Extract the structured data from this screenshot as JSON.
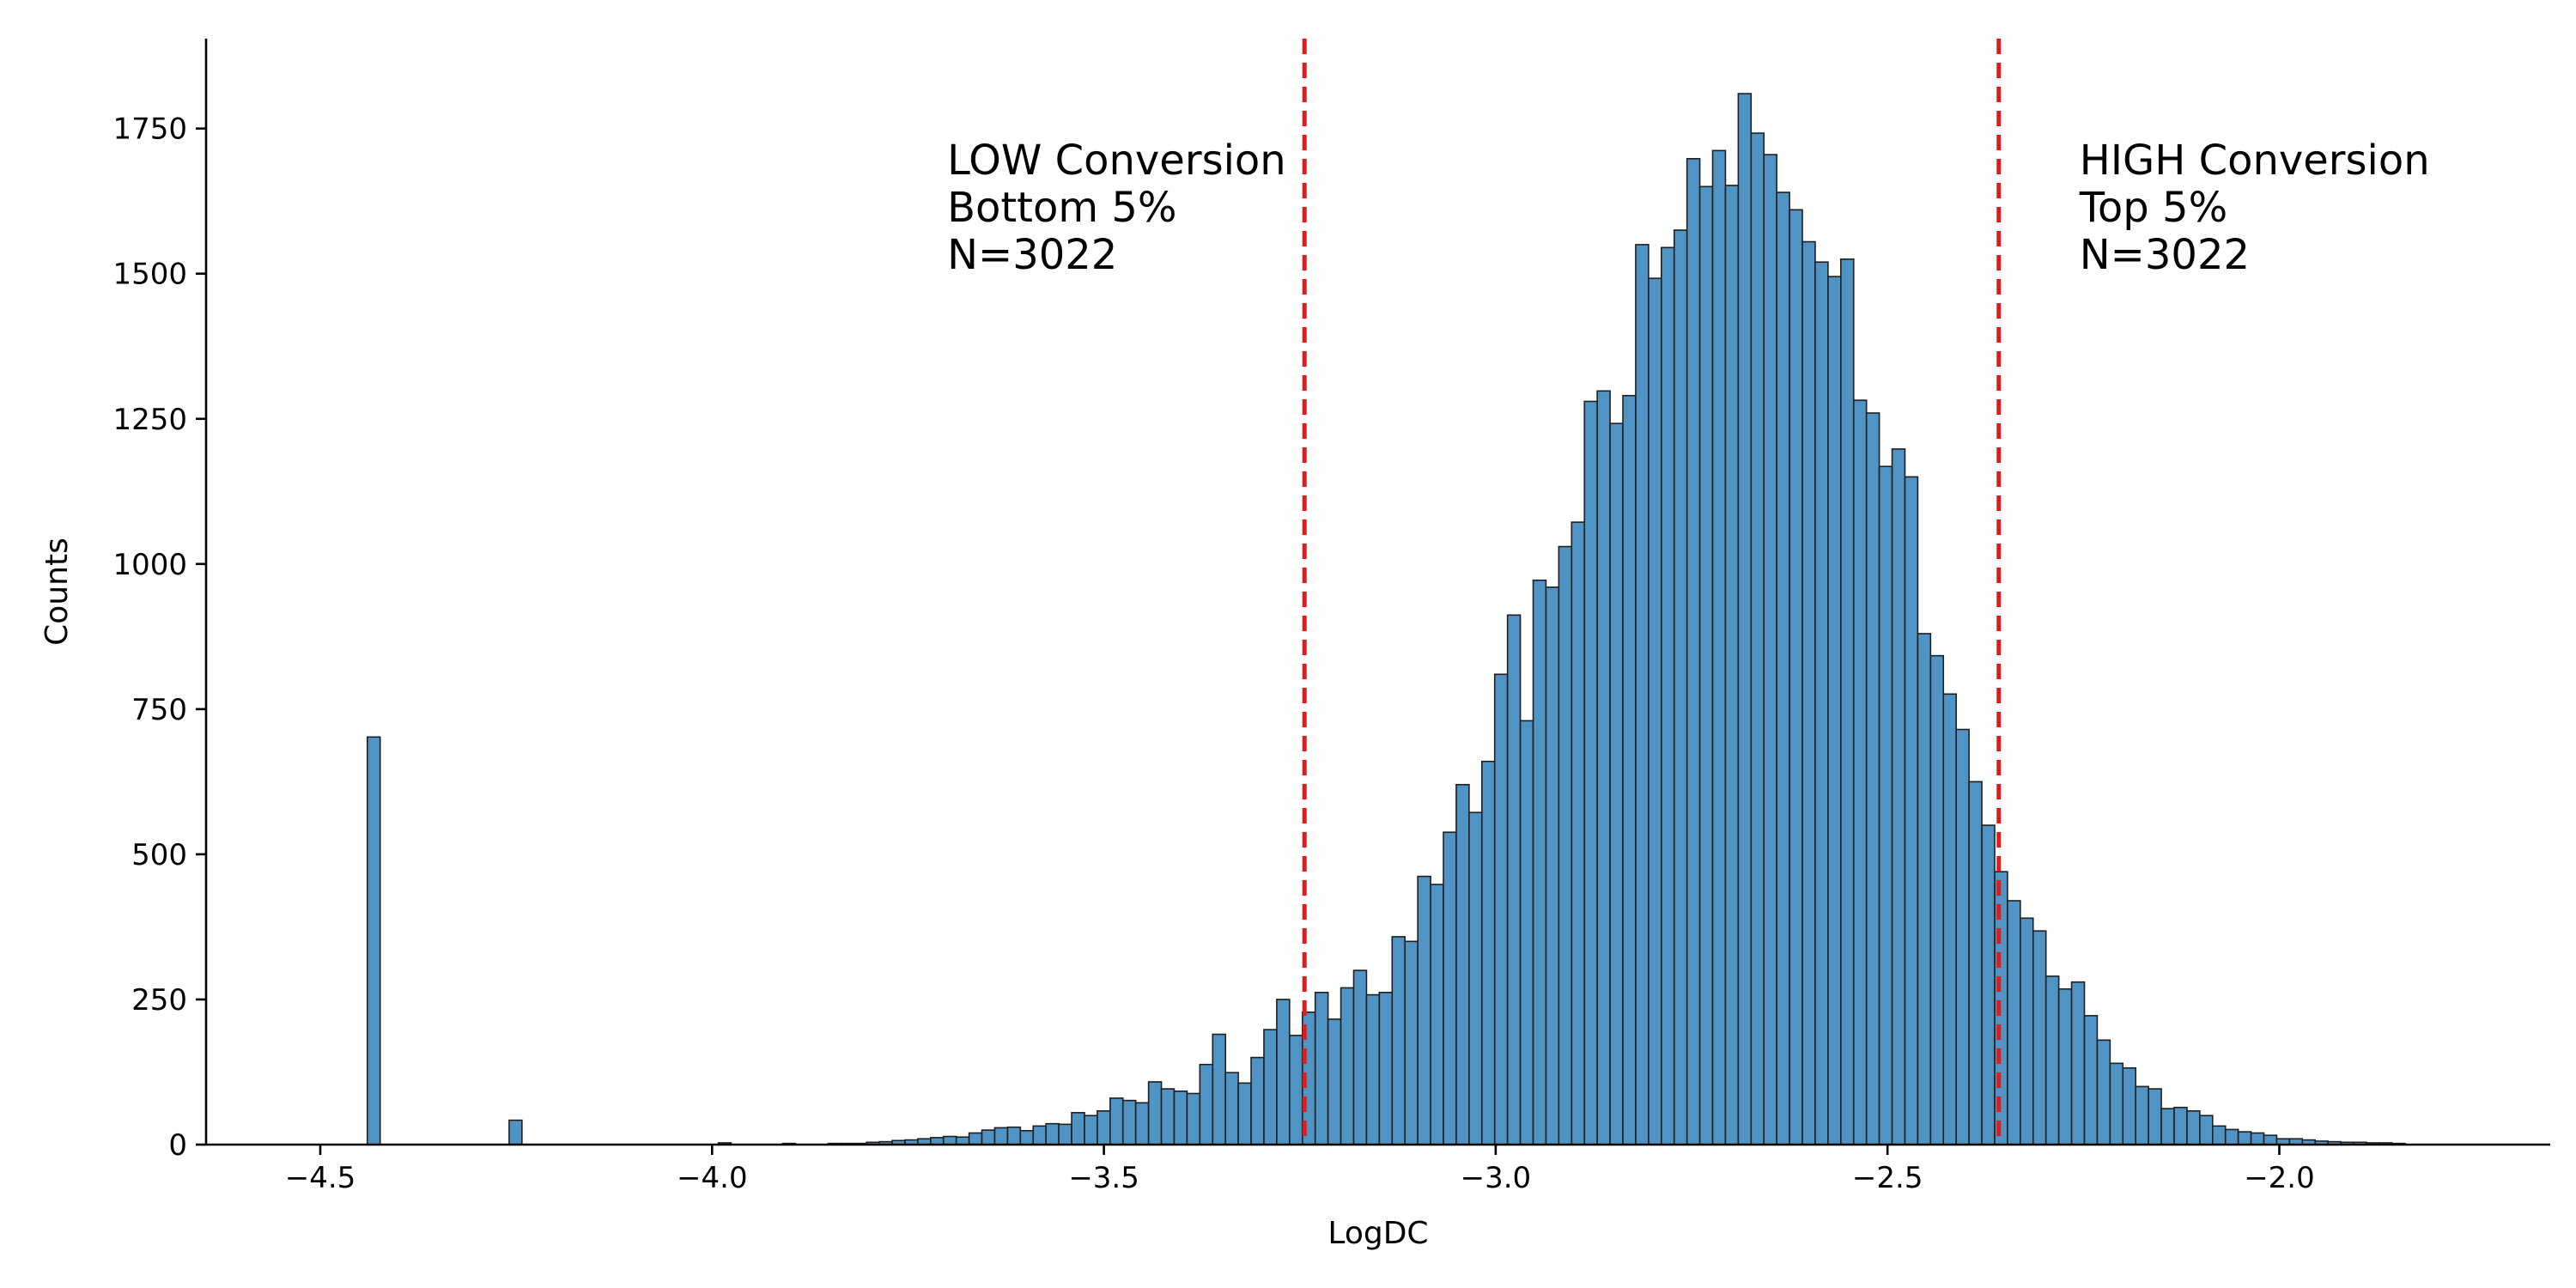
{
  "chart_data": {
    "type": "bar",
    "subtype": "histogram",
    "xlabel": "LogDC",
    "ylabel": "Counts",
    "xlim": [
      -4.58,
      -1.72
    ],
    "ylim": [
      0,
      1890
    ],
    "bin_width": 0.01636,
    "x_ticks": [
      -4.5,
      -4.0,
      -3.5,
      -3.0,
      -2.5,
      -2.0
    ],
    "x_tick_labels": [
      "−4.5",
      "−4.0",
      "−3.5",
      "−3.0",
      "−2.5",
      "−2.0"
    ],
    "y_ticks": [
      0,
      250,
      500,
      750,
      1000,
      1250,
      1500,
      1750
    ],
    "y_tick_labels": [
      "0",
      "250",
      "500",
      "750",
      "1000",
      "1250",
      "1500",
      "1750"
    ],
    "bin_start": -3.852,
    "counts": [
      2,
      2,
      2,
      4,
      5,
      7,
      8,
      10,
      12,
      14,
      13,
      20,
      25,
      29,
      30,
      24,
      32,
      36,
      35,
      55,
      50,
      58,
      80,
      76,
      72,
      108,
      96,
      92,
      88,
      138,
      190,
      124,
      106,
      150,
      198,
      250,
      188,
      228,
      262,
      216,
      270,
      300,
      258,
      262,
      358,
      350,
      462,
      448,
      538,
      620,
      572,
      660,
      810,
      912,
      730,
      972,
      960,
      1030,
      1072,
      1280,
      1298,
      1242,
      1290,
      1550,
      1492,
      1545,
      1575,
      1698,
      1650,
      1712,
      1652,
      1810,
      1742,
      1705,
      1640,
      1610,
      1555,
      1520,
      1495,
      1525,
      1282,
      1260,
      1168,
      1198,
      1150,
      880,
      842,
      776,
      715,
      625,
      550,
      470,
      420,
      390,
      368,
      290,
      268,
      280,
      222,
      180,
      140,
      132,
      100,
      96,
      62,
      64,
      58,
      50,
      32,
      26,
      22,
      20,
      16,
      10,
      10,
      8,
      6,
      5,
      4,
      4,
      3,
      3,
      2
    ],
    "outliers": [
      {
        "x": -4.44,
        "count": 702
      },
      {
        "x": -4.259,
        "count": 42
      }
    ],
    "tiny_bins": [
      {
        "x": -3.992,
        "count": 3
      },
      {
        "x": -3.91,
        "count": 2
      }
    ],
    "thresholds": [
      {
        "name": "low",
        "x": -3.244,
        "color": "#e31a1c"
      },
      {
        "name": "high",
        "x": -2.358,
        "color": "#e31a1c"
      }
    ],
    "annotations": [
      {
        "id": "low",
        "x": -3.7,
        "lines": [
          "LOW Conversion",
          "Bottom 5%",
          "N=3022"
        ]
      },
      {
        "id": "high",
        "x": -2.255,
        "lines": [
          "HIGH Conversion",
          "Top 5%",
          "N=3022"
        ]
      }
    ],
    "bar_color": "#4f94c4",
    "grid": false
  }
}
